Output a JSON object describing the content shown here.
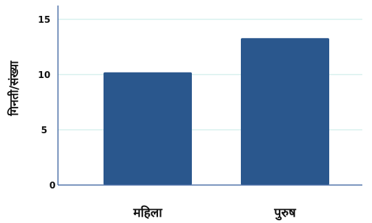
{
  "chart_data": {
    "type": "bar",
    "title": "",
    "xlabel": "",
    "ylabel": "गिनती/संख्या",
    "categories": [
      "महिला",
      "पुरुष"
    ],
    "values": [
      10.2,
      13.3
    ],
    "ylim": [
      0,
      16
    ],
    "yticks": [
      0,
      5,
      10,
      15
    ],
    "grid": true,
    "colors": {
      "bar": "#2a578d",
      "grid": "#cfeee9",
      "axis": "#4a6fa5"
    }
  }
}
